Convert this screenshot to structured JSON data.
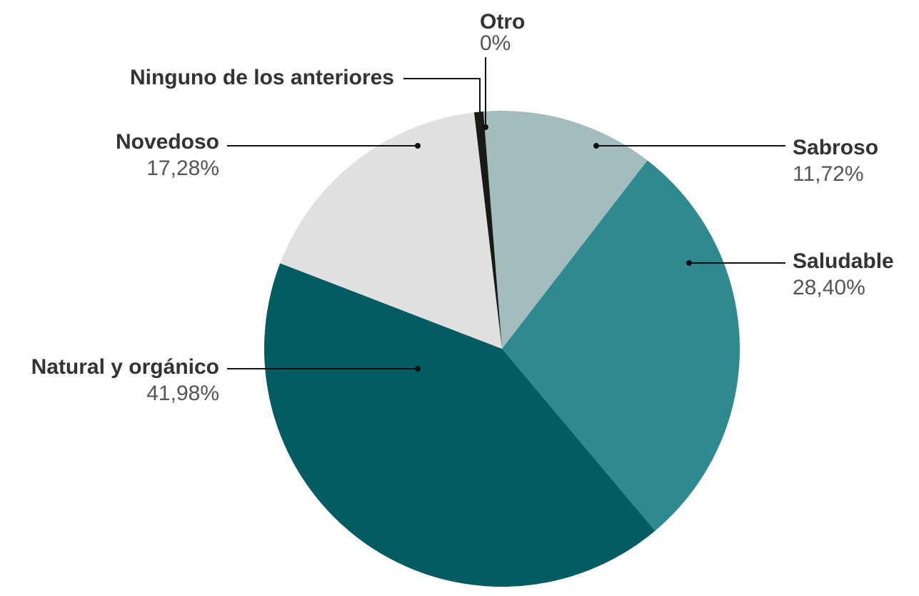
{
  "chart_data": {
    "type": "pie",
    "categories": [
      "Sabroso",
      "Saludable",
      "Natural y orgánico",
      "Novedoso",
      "Ninguno de los anteriores",
      "Otro"
    ],
    "values": [
      11.72,
      28.4,
      41.98,
      17.28,
      0.62,
      0
    ],
    "value_labels": [
      "11,72%",
      "28,40%",
      "41,98%",
      "17,28%",
      null,
      "0%"
    ],
    "colors": [
      "#a3bdbf",
      "#2e8a8f",
      "#045c62",
      "#e1e0e1",
      "#1a1a14",
      "#6e6e6e"
    ]
  }
}
